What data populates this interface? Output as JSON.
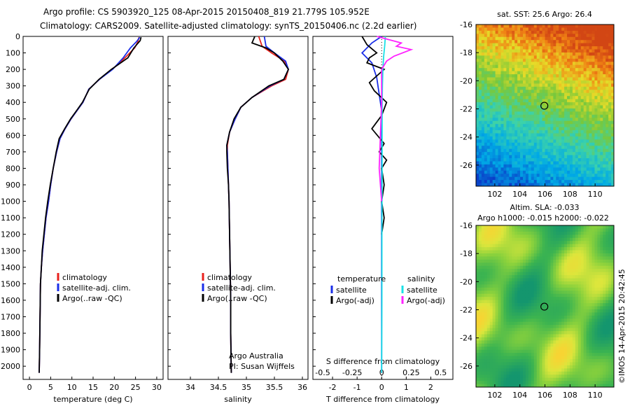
{
  "header": {
    "line1": "Argo profile: CS 5903920_125 08-Apr-2015 20150408_819 21.779S 105.952E",
    "line2": "Climatology: CARS2009. Satellite-adjusted climatology: synTS_20150406.nc (2.2d earlier)"
  },
  "colors": {
    "climatology": "#e8201c",
    "satellite": "#1a2ee8",
    "argo": "#000000",
    "salinity_satellite": "#19e0e6",
    "salinity_argo": "#ff22ff"
  },
  "depth_axis": {
    "ticks": [
      "0",
      "100",
      "200",
      "300",
      "400",
      "500",
      "600",
      "700",
      "800",
      "900",
      "1000",
      "1100",
      "1200",
      "1300",
      "1400",
      "1500",
      "1600",
      "1700",
      "1800",
      "1900",
      "2000"
    ],
    "range": [
      0,
      2080
    ],
    "reversed": true
  },
  "chart_data": [
    {
      "type": "line",
      "name": "temperature",
      "xlabel": "temperature (deg C)",
      "xlim": [
        -1.5,
        31.5
      ],
      "xticks": [
        "0",
        "5",
        "10",
        "15",
        "20",
        "25",
        "30"
      ],
      "legend": [
        "climatology",
        "satellite-adj. clim.",
        "Argo(..raw -QC)"
      ],
      "series": [
        {
          "name": "climatology",
          "x": [
            25.8,
            25.6,
            24.8,
            22.5,
            19.5,
            16.5,
            14.0,
            12.6,
            11.2,
            9.8,
            8.4,
            7.2,
            6.4,
            5.6,
            5.0,
            4.5,
            3.9,
            3.5,
            3.1,
            2.8,
            2.6,
            2.5,
            2.4,
            2.3
          ],
          "depth": [
            5,
            30,
            70,
            130,
            200,
            260,
            320,
            400,
            450,
            500,
            560,
            620,
            700,
            800,
            900,
            1000,
            1100,
            1200,
            1300,
            1400,
            1500,
            1700,
            1900,
            2040
          ]
        },
        {
          "name": "satellite-adj. clim.",
          "x": [
            26.0,
            25.3,
            23.8,
            22.1,
            19.6,
            16.5,
            14.0,
            12.6,
            11.2,
            9.8,
            8.4,
            7.2,
            6.4,
            5.6,
            5.0,
            4.5,
            3.9,
            3.5,
            3.1,
            2.8,
            2.6,
            2.5,
            2.4,
            2.3
          ],
          "depth": [
            5,
            30,
            70,
            130,
            200,
            260,
            320,
            400,
            450,
            500,
            560,
            620,
            700,
            800,
            900,
            1000,
            1100,
            1200,
            1300,
            1400,
            1500,
            1700,
            1900,
            2040
          ]
        },
        {
          "name": "Argo(..raw -QC)",
          "x": [
            26.3,
            26.1,
            24.6,
            23.2,
            19.3,
            16.4,
            14.1,
            12.5,
            11.1,
            9.7,
            8.3,
            7.0,
            6.3,
            5.6,
            4.9,
            4.3,
            3.8,
            3.4,
            3.0,
            2.8,
            2.6,
            2.5,
            2.4,
            2.3
          ],
          "depth": [
            5,
            25,
            70,
            130,
            200,
            260,
            320,
            400,
            450,
            500,
            560,
            620,
            700,
            800,
            900,
            1000,
            1100,
            1200,
            1300,
            1400,
            1500,
            1700,
            1900,
            2040
          ]
        }
      ]
    },
    {
      "type": "line",
      "name": "salinity",
      "xlabel": "salinity",
      "xlim": [
        33.6,
        36.1
      ],
      "xticks": [
        "34",
        "34.5",
        "35",
        "35.5",
        "36"
      ],
      "legend": [
        "climatology",
        "satellite-adj. clim.",
        "Argo(..raw -QC)"
      ],
      "annotation": [
        "Argo Australia",
        "PI: Susan Wijffels"
      ],
      "series": [
        {
          "name": "climatology",
          "x": [
            35.22,
            35.28,
            35.45,
            35.68,
            35.75,
            35.7,
            35.45,
            35.1,
            34.9,
            34.8,
            34.7,
            34.66,
            34.66,
            34.67,
            34.68,
            34.69,
            34.7,
            34.71,
            34.72,
            34.72,
            34.73
          ],
          "depth": [
            0,
            60,
            100,
            150,
            200,
            260,
            300,
            370,
            430,
            500,
            580,
            660,
            700,
            800,
            900,
            1000,
            1200,
            1400,
            1600,
            1800,
            2040
          ]
        },
        {
          "name": "satellite-adj. clim.",
          "x": [
            35.32,
            35.35,
            35.5,
            35.7,
            35.75,
            35.67,
            35.42,
            35.1,
            34.9,
            34.8,
            34.7,
            34.65,
            34.66,
            34.67,
            34.68,
            34.69,
            34.7,
            34.71,
            34.72,
            34.72,
            34.73
          ],
          "depth": [
            0,
            60,
            100,
            150,
            200,
            260,
            300,
            370,
            430,
            500,
            580,
            660,
            700,
            800,
            900,
            1000,
            1200,
            1400,
            1600,
            1800,
            2040
          ]
        },
        {
          "name": "Argo(..raw -QC)",
          "x": [
            35.15,
            35.1,
            35.35,
            35.5,
            35.65,
            35.75,
            35.67,
            35.4,
            35.1,
            34.9,
            34.78,
            34.7,
            34.65,
            34.65,
            34.66,
            34.68,
            34.69,
            34.7,
            34.71,
            34.72,
            34.72,
            34.73
          ],
          "depth": [
            0,
            40,
            70,
            100,
            150,
            200,
            260,
            300,
            370,
            430,
            500,
            580,
            660,
            700,
            800,
            900,
            1000,
            1200,
            1400,
            1600,
            1800,
            2040
          ]
        }
      ]
    },
    {
      "type": "line",
      "name": "difference",
      "xlabel": "T difference from climatology",
      "xlabel_top": "S difference from climatology",
      "xlim": [
        -2.8,
        2.9
      ],
      "xticks": [
        "-2",
        "-1",
        "0",
        "1",
        "2"
      ],
      "xticks_top": [
        "-0.5",
        "-0.25",
        "0",
        "0.25",
        "0.5"
      ],
      "legend_temperature_title": "temperature",
      "legend_salinity_title": "salinity",
      "legend_temperature": [
        "satellite",
        "Argo(-adj)"
      ],
      "legend_salinity": [
        "satellite",
        "Argo(-adj)"
      ],
      "series": [
        {
          "name": "T satellite",
          "x": [
            0.0,
            -0.4,
            -0.8,
            -0.4,
            -0.2,
            -0.1,
            0.0,
            0.0,
            0.0,
            0.0,
            0.0,
            0.0
          ],
          "depth": [
            0,
            40,
            100,
            160,
            250,
            350,
            450,
            550,
            700,
            1000,
            1500,
            2040
          ]
        },
        {
          "name": "T Argo(-adj)",
          "x": [
            -0.8,
            -0.6,
            -0.2,
            -0.5,
            -0.6,
            0.1,
            -0.2,
            -0.5,
            -0.3,
            0.2,
            0.0,
            -0.4,
            0.1,
            -0.1,
            0.2,
            0.0,
            0.1,
            0.0,
            0.1,
            0.0
          ],
          "depth": [
            0,
            50,
            100,
            130,
            160,
            200,
            240,
            280,
            330,
            400,
            480,
            560,
            650,
            700,
            750,
            800,
            900,
            1000,
            1100,
            1200
          ]
        },
        {
          "name": "S satellite",
          "x": [
            0.15,
            0.12,
            0.08,
            0.05,
            0.03,
            0.02,
            0.02,
            0.02,
            0.01,
            0.01,
            0.0
          ],
          "depth": [
            0,
            60,
            120,
            200,
            300,
            400,
            500,
            800,
            1200,
            1600,
            2040
          ]
        },
        {
          "name": "S Argo(-adj)",
          "x": [
            -0.2,
            0.8,
            0.6,
            1.2,
            0.5,
            0.2,
            0.0,
            0.0,
            -0.1,
            0.0
          ],
          "depth": [
            0,
            40,
            60,
            80,
            120,
            150,
            200,
            400,
            800,
            1000
          ]
        }
      ]
    },
    {
      "type": "heatmap",
      "name": "sst_map",
      "title": "sat. SST: 25.6  Argo: 26.4",
      "xticks": [
        "102",
        "104",
        "106",
        "108",
        "110"
      ],
      "yticks": [
        "-16",
        "-18",
        "-20",
        "-22",
        "-24",
        "-26"
      ],
      "xlim": [
        100.5,
        111.5
      ],
      "ylim": [
        -27.5,
        -16
      ],
      "marker": {
        "lon": 105.952,
        "lat": -21.779
      }
    },
    {
      "type": "heatmap",
      "name": "sla_map",
      "title": "Altim. SLA: -0.033",
      "subtitle": "Argo h1000: -0.015  h2000: -0.022",
      "xticks": [
        "102",
        "104",
        "106",
        "108",
        "110"
      ],
      "yticks": [
        "-16",
        "-18",
        "-20",
        "-22",
        "-24",
        "-26"
      ],
      "xlim": [
        100.5,
        111.5
      ],
      "ylim": [
        -27.5,
        -16
      ],
      "marker": {
        "lon": 105.952,
        "lat": -21.779
      }
    }
  ],
  "footer": {
    "stamp": "©IMOS 14-Apr-2015 20:42:45"
  }
}
